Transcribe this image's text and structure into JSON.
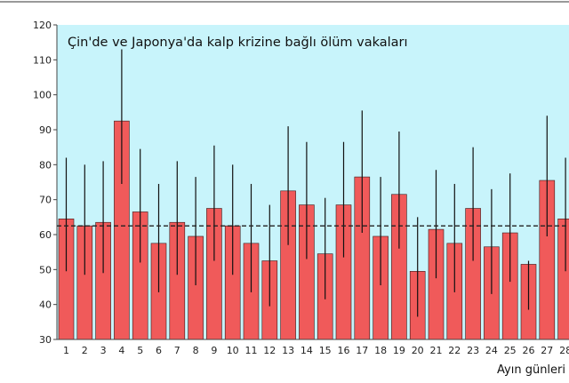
{
  "chart_data": {
    "type": "bar",
    "title": "Çin'de ve Japonya'da kalp krizine bağlı ölüm vakaları",
    "xlabel": "Ayın günleri",
    "ylabel": "",
    "ylim": [
      30,
      120
    ],
    "yticks": [
      30,
      40,
      50,
      60,
      70,
      80,
      90,
      100,
      110,
      120
    ],
    "categories": [
      "1",
      "2",
      "3",
      "4",
      "5",
      "6",
      "7",
      "8",
      "9",
      "10",
      "11",
      "12",
      "13",
      "14",
      "15",
      "16",
      "17",
      "18",
      "19",
      "20",
      "21",
      "22",
      "23",
      "24",
      "25",
      "26",
      "27",
      "28"
    ],
    "values": [
      64.5,
      62.5,
      63.5,
      92.5,
      66.5,
      57.5,
      63.5,
      59.5,
      67.5,
      62.5,
      57.5,
      52.5,
      72.5,
      68.5,
      54.5,
      68.5,
      76.5,
      59.5,
      71.5,
      49.5,
      61.5,
      57.5,
      67.5,
      56.5,
      60.5,
      51.5,
      75.5,
      64.5
    ],
    "error_low": [
      49.5,
      48.5,
      49,
      74.5,
      52,
      43.5,
      48.5,
      45.5,
      52.5,
      48.5,
      43.5,
      39.5,
      57,
      53,
      41.5,
      53.5,
      60.5,
      45.5,
      56,
      36.5,
      47.5,
      43.5,
      52.5,
      43,
      46.5,
      38.5,
      59.5,
      49.5
    ],
    "error_high": [
      82,
      80,
      81,
      113,
      84.5,
      74.5,
      81,
      76.5,
      85.5,
      80,
      74.5,
      68.5,
      91,
      86.5,
      70.5,
      86.5,
      95.5,
      76.5,
      89.5,
      65,
      78.5,
      74.5,
      85,
      73,
      77.5,
      52.5,
      94,
      82
    ],
    "reference_line": 62.5,
    "grid": false,
    "colors": {
      "bar": "#f05a5a",
      "bar_stroke": "#3a1a1a",
      "plot_bg": "#c8f4fb",
      "error_bar": "#111111",
      "reference_line": "#222222",
      "frame": "#444444"
    }
  }
}
